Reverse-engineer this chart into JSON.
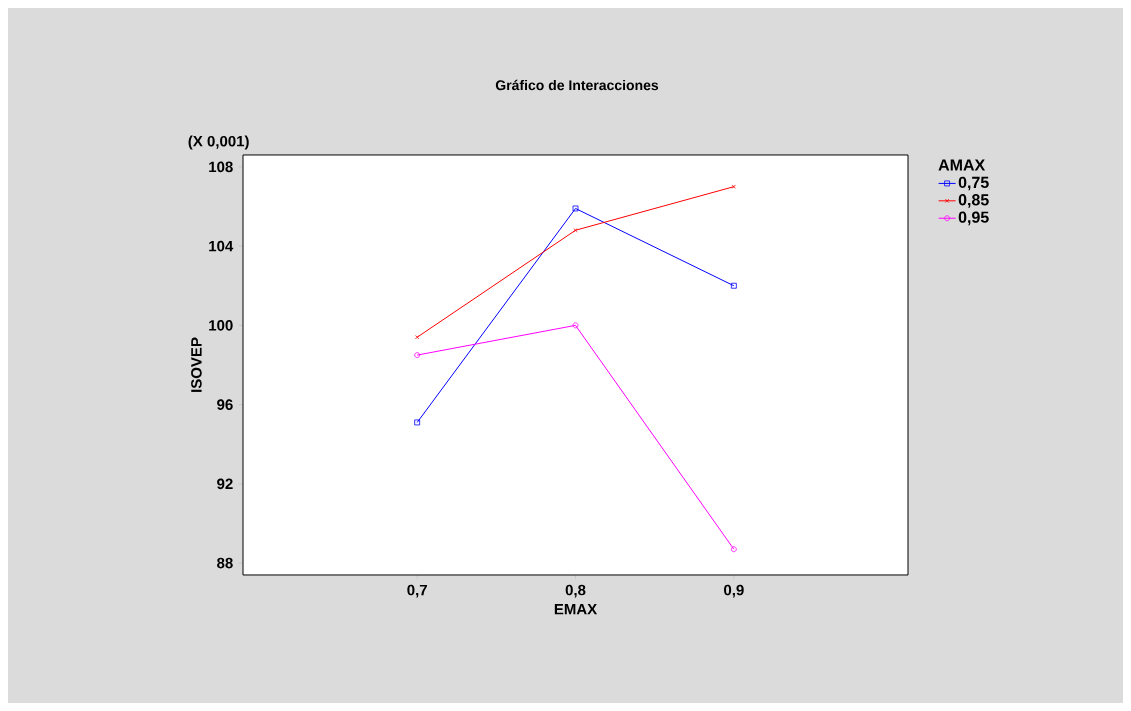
{
  "chart_data": {
    "type": "line",
    "title": "Gráfico de Interacciones",
    "xlabel": "EMAX",
    "ylabel": "ISOVEP",
    "legend_title": "AMAX",
    "annotations": [
      "(X 0,001)"
    ],
    "x": [
      0.7,
      0.8,
      0.9
    ],
    "series": [
      {
        "name": "0,75",
        "color": "#0000ff",
        "marker": "square",
        "values": [
          95.1,
          105.9,
          102.0
        ]
      },
      {
        "name": "0,85",
        "color": "#ff0000",
        "marker": "cross",
        "values": [
          99.4,
          104.8,
          107.0
        ]
      },
      {
        "name": "0,95",
        "color": "#ff00ff",
        "marker": "circle",
        "values": [
          98.5,
          100.0,
          88.7
        ]
      }
    ],
    "xlim": [
      0.59,
      1.01
    ],
    "ylim": [
      87.4,
      108.6
    ],
    "xticks": [
      {
        "value": 0.7,
        "label": "0,7"
      },
      {
        "value": 0.8,
        "label": "0,8"
      },
      {
        "value": 0.9,
        "label": "0,9"
      }
    ],
    "yticks": [
      88,
      92,
      96,
      100,
      104,
      108
    ],
    "grid": false,
    "legend": "right",
    "line_style": "solid"
  }
}
